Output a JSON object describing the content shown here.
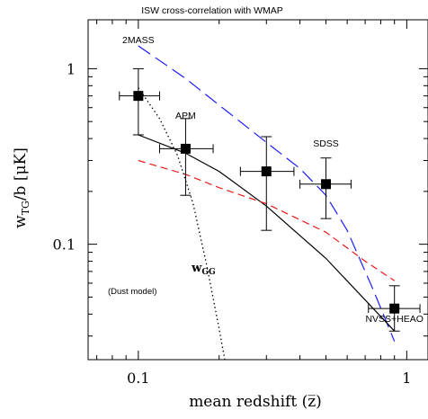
{
  "chart_data": {
    "type": "scatter",
    "title": "ISW cross-correlation with WMAP",
    "xlabel": "mean redshift (z̅)",
    "ylabel": "w_TG/b [μK]",
    "xscale": "log",
    "yscale": "log",
    "xlim": [
      0.065,
      1.2
    ],
    "ylim": [
      0.022,
      1.9
    ],
    "x_ticks": [
      0.1,
      1
    ],
    "x_tick_labels": [
      "0.1",
      "1"
    ],
    "y_ticks": [
      0.1,
      1
    ],
    "y_tick_labels": [
      "0.1",
      "1"
    ],
    "grid": false,
    "points": [
      {
        "name": "2MASS",
        "x": 0.1,
        "y": 0.7,
        "xerr": [
          0.085,
          0.12
        ],
        "yerr": [
          0.42,
          1.0
        ]
      },
      {
        "name": "APM",
        "x": 0.15,
        "y": 0.35,
        "xerr": [
          0.12,
          0.19
        ],
        "yerr": [
          0.19,
          0.52
        ]
      },
      {
        "name": "SDSS",
        "x": 0.3,
        "y": 0.26,
        "xerr": [
          0.24,
          0.38
        ],
        "yerr": [
          0.12,
          0.41
        ]
      },
      {
        "name": "SDSS",
        "x": 0.5,
        "y": 0.22,
        "xerr": [
          0.4,
          0.62
        ],
        "yerr": [
          0.14,
          0.31
        ]
      },
      {
        "name": "NVSS+HEAO",
        "x": 0.9,
        "y": 0.043,
        "xerr": [
          0.72,
          1.12
        ],
        "yerr": [
          0.032,
          0.058
        ]
      }
    ],
    "series": [
      {
        "style": "long-dash",
        "color": "#1a1aff",
        "x": [
          0.1,
          0.15,
          0.2,
          0.3,
          0.4,
          0.5,
          0.6,
          0.75,
          0.9
        ],
        "y": [
          1.35,
          0.88,
          0.62,
          0.38,
          0.27,
          0.19,
          0.12,
          0.055,
          0.028
        ]
      },
      {
        "style": "solid",
        "color": "#000000",
        "x": [
          0.1,
          0.15,
          0.2,
          0.3,
          0.5,
          0.9
        ],
        "y": [
          0.42,
          0.33,
          0.26,
          0.165,
          0.083,
          0.032
        ]
      },
      {
        "style": "dash",
        "color": "#e81a1a",
        "x": [
          0.1,
          0.15,
          0.2,
          0.3,
          0.5,
          0.7,
          0.9
        ],
        "y": [
          0.3,
          0.25,
          0.21,
          0.17,
          0.117,
          0.08,
          0.062
        ]
      },
      {
        "style": "dotted",
        "color": "#000000",
        "x": [
          0.1,
          0.12,
          0.14,
          0.16,
          0.18,
          0.2,
          0.21
        ],
        "y": [
          0.78,
          0.52,
          0.32,
          0.17,
          0.075,
          0.033,
          0.022
        ]
      }
    ],
    "annotations": [
      {
        "text": "2MASS",
        "x": 0.1,
        "y": 1.4
      },
      {
        "text": "APM",
        "x": 0.15,
        "y": 0.52
      },
      {
        "text": "SDSS",
        "x": 0.5,
        "y": 0.36
      },
      {
        "text": "NVSS+HEAO",
        "x": 0.9,
        "y": 0.036
      },
      {
        "text": "w_GG",
        "x": 0.175,
        "y": 0.07
      },
      {
        "text": "(Dust model)",
        "x": 0.095,
        "y": 0.052
      }
    ]
  }
}
